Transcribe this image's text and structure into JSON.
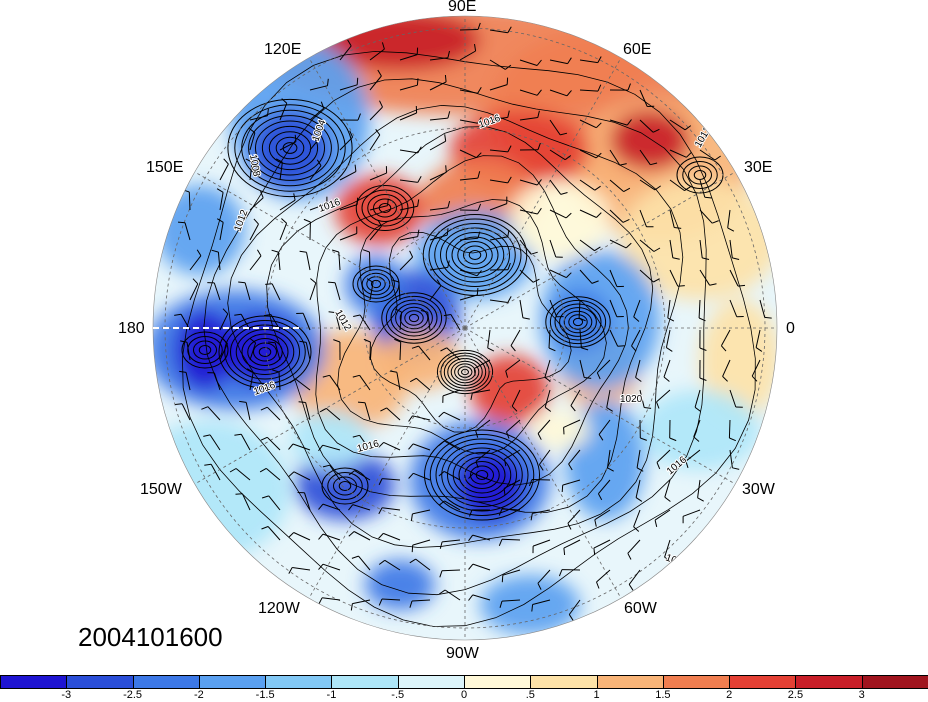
{
  "date_label": "2004101600",
  "longitude_labels": [
    "90E",
    "60E",
    "30E",
    "0",
    "30W",
    "60W",
    "90W",
    "120W",
    "150W",
    "180",
    "150E",
    "120E"
  ],
  "contour_labels": [
    "1016",
    "1012",
    "1008",
    "1004",
    "1020",
    "1016",
    "1012",
    "1016",
    "1012",
    "1016",
    "1016",
    "1012"
  ],
  "colorbar": {
    "tick_labels": [
      "-3",
      "-2.5",
      "-2",
      "-1.5",
      "-1",
      "-.5",
      "0",
      ".5",
      "1",
      "1.5",
      "2",
      "2.5",
      "3"
    ],
    "colors": [
      "#1e14d2",
      "#2a4ed8",
      "#3c78e6",
      "#5aa0f0",
      "#82c8f5",
      "#aee6f8",
      "#dcf4fa",
      "#fff8d8",
      "#fde2a8",
      "#f8b478",
      "#f07e50",
      "#e44034",
      "#c81e28",
      "#a0141e"
    ]
  },
  "legend": {
    "type": "filled contours with pressure isobars and wind barbs",
    "projection": "north polar stereographic",
    "contour_level_min": -3,
    "contour_level_max": 3,
    "contour_interval": 0.5
  }
}
